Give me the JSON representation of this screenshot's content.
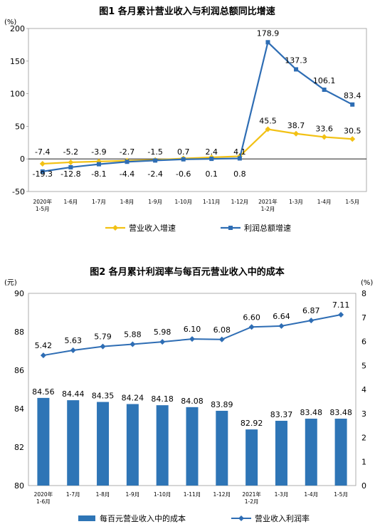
{
  "chart_data": [
    {
      "type": "line",
      "title": "图1  各月累计营业收入与利润总额同比增速",
      "ylabel": "(%)",
      "ylim": [
        -50,
        200
      ],
      "yticks": [
        "200",
        "150",
        "100",
        "50",
        "0",
        "-50"
      ],
      "categories": [
        "2020年\n1-5月",
        "1-6月",
        "1-7月",
        "1-8月",
        "1-9月",
        "1-10月",
        "1-11月",
        "1-12月",
        "2021年\n1-2月",
        "1-3月",
        "1-4月",
        "1-5月"
      ],
      "series": [
        {
          "name": "营业收入增速",
          "color": "#F2C114",
          "values": [
            -7.4,
            -5.2,
            -3.9,
            -2.7,
            -1.5,
            0.7,
            2.4,
            4.1,
            45.5,
            38.7,
            33.6,
            30.5
          ]
        },
        {
          "name": "利润总额增速",
          "color": "#2E6DB4",
          "values": [
            -19.3,
            -12.8,
            -8.1,
            -4.4,
            -2.4,
            -0.6,
            0.1,
            0.8,
            178.9,
            137.3,
            106.1,
            83.4
          ]
        }
      ],
      "value_labels": {
        "营业收入增速": [
          "-7.4",
          "-5.2",
          "-3.9",
          "-2.7",
          "-1.5",
          "0.7",
          "2.4",
          "4.1",
          "45.5",
          "38.7",
          "33.6",
          "30.5"
        ],
        "利润总额增速": [
          "-19.3",
          "-12.8",
          "-8.1",
          "-4.4",
          "-2.4",
          "-0.6",
          "0.1",
          "0.8",
          "178.9",
          "137.3",
          "106.1",
          "83.4"
        ]
      },
      "legend_position": "bottom",
      "grid": false
    },
    {
      "type": "bar",
      "title": "图2  各月累计利润率与每百元营业收入中的成本",
      "ylabel_left": "(元)",
      "ylabel_right": "(%)",
      "ylim_left": [
        80,
        90
      ],
      "ylim_right": [
        0,
        8
      ],
      "yticks_left": [
        "90",
        "88",
        "86",
        "84",
        "82",
        "80"
      ],
      "yticks_right": [
        "8",
        "7",
        "6",
        "5",
        "4",
        "3",
        "2",
        "1",
        "0"
      ],
      "categories": [
        "2020年\n1-6月",
        "1-7月",
        "1-8月",
        "1-9月",
        "1-10月",
        "1-11月",
        "1-12月",
        "2021年\n1-2月",
        "1-3月",
        "1-4月",
        "1-5月"
      ],
      "series": [
        {
          "name": "每百元营业收入中的成本",
          "type": "bar",
          "axis": "left",
          "color": "#2E75B6",
          "values": [
            84.56,
            84.44,
            84.35,
            84.24,
            84.18,
            84.08,
            83.89,
            82.92,
            83.37,
            83.48,
            83.48
          ]
        },
        {
          "name": "营业收入利润率",
          "type": "line",
          "axis": "right",
          "color": "#2E6DB4",
          "values": [
            5.42,
            5.63,
            5.79,
            5.88,
            5.98,
            6.1,
            6.08,
            6.6,
            6.64,
            6.87,
            7.11
          ]
        }
      ],
      "value_labels": {
        "每百元营业收入中的成本": [
          "84.56",
          "84.44",
          "84.35",
          "84.24",
          "84.18",
          "84.08",
          "83.89",
          "82.92",
          "83.37",
          "83.48",
          "83.48"
        ],
        "营业收入利润率": [
          "5.42",
          "5.63",
          "5.79",
          "5.88",
          "5.98",
          "6.10",
          "6.08",
          "6.60",
          "6.64",
          "6.87",
          "7.11"
        ]
      },
      "legend_position": "bottom",
      "grid": false
    }
  ]
}
